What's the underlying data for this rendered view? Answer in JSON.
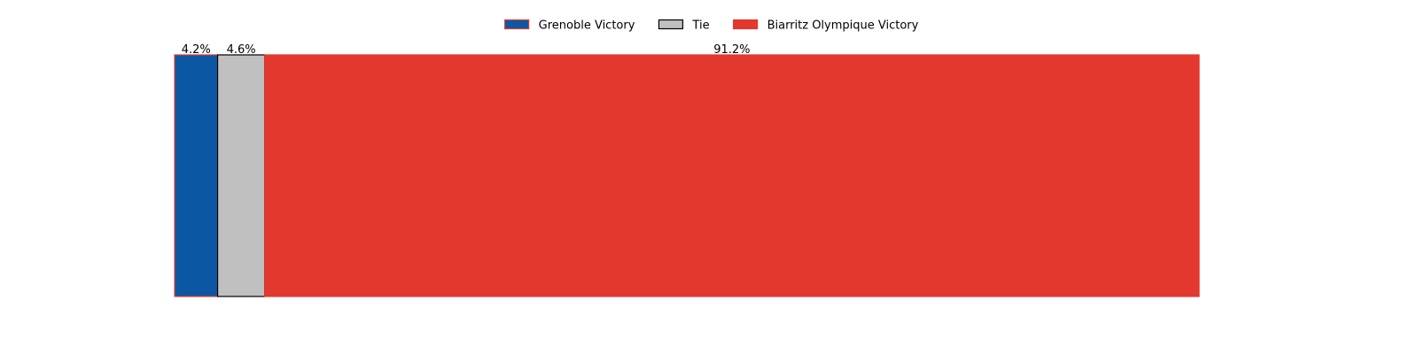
{
  "chart_data": {
    "type": "bar",
    "orientation": "horizontal-stacked",
    "categories": [
      "Grenoble Victory",
      "Tie",
      "Biarritz Olympique Victory"
    ],
    "values": [
      4.2,
      4.6,
      91.2
    ],
    "value_labels": [
      "4.2%",
      "4.6%",
      "91.2%"
    ],
    "xlim": [
      0,
      100
    ],
    "legend": {
      "placement": "top-center",
      "entries": [
        "Grenoble Victory",
        "Tie",
        "Biarritz Olympique Victory"
      ]
    },
    "colors": {
      "Grenoble Victory": "#0b57a4",
      "Tie": "#c0c0c0",
      "Biarritz Olympique Victory": "#e2382d"
    },
    "edge_colors": {
      "Grenoble Victory": "#e2382d",
      "Tie": "#000000",
      "Biarritz Olympique Victory": "#e2382d"
    },
    "axes_visible": false,
    "grid": false
  }
}
